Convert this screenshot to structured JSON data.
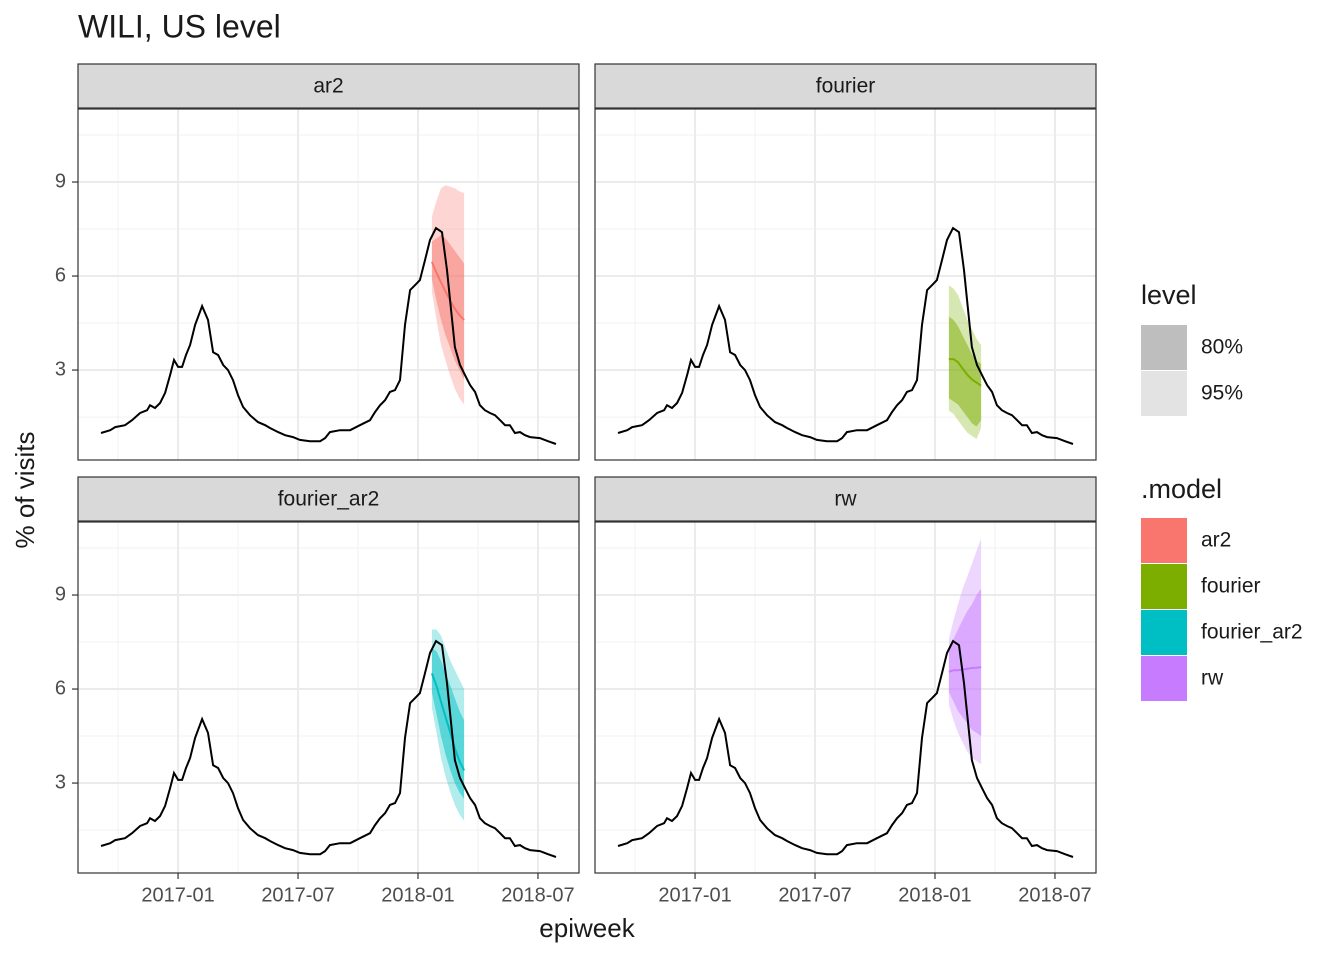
{
  "chart_data": {
    "type": "line",
    "title": "WILI, US level",
    "x_label": "epiweek",
    "y_label": "% of visits",
    "xlim": [
      2016.583,
      2018.671
    ],
    "ylim": [
      0.13,
      11.33
    ],
    "xticks": [
      {
        "value": 2017.0,
        "label": "2017-01"
      },
      {
        "value": 2017.5,
        "label": "2017-07"
      },
      {
        "value": 2018.0,
        "label": "2018-01"
      },
      {
        "value": 2018.5,
        "label": "2018-07"
      }
    ],
    "yticks": [
      3,
      6,
      9
    ],
    "grid": true,
    "x": [
      2016.679,
      2016.717,
      2016.738,
      2016.779,
      2016.808,
      2016.842,
      2016.871,
      2016.883,
      2016.904,
      2016.925,
      2016.946,
      2016.967,
      2016.983,
      2017.0,
      2017.017,
      2017.033,
      2017.05,
      2017.071,
      2017.1,
      2017.125,
      2017.146,
      2017.167,
      2017.188,
      2017.208,
      2017.229,
      2017.25,
      2017.271,
      2017.3,
      2017.333,
      2017.363,
      2017.383,
      2017.417,
      2017.446,
      2017.479,
      2017.508,
      2017.55,
      2017.592,
      2017.613,
      2017.633,
      2017.675,
      2017.717,
      2017.758,
      2017.8,
      2017.821,
      2017.842,
      2017.863,
      2017.883,
      2017.904,
      2017.925,
      2017.946,
      2017.967,
      2017.988,
      2018.008,
      2018.029,
      2018.05,
      2018.075,
      2018.1,
      2018.121,
      2018.138,
      2018.154,
      2018.175,
      2018.196,
      2018.217,
      2018.238,
      2018.258,
      2018.279,
      2018.3,
      2018.321,
      2018.342,
      2018.363,
      2018.383,
      2018.404,
      2018.425,
      2018.446,
      2018.467,
      2018.508,
      2018.542,
      2018.575
    ],
    "observed": {
      "color": "#000000",
      "values": [
        0.99,
        1.08,
        1.18,
        1.24,
        1.4,
        1.63,
        1.72,
        1.88,
        1.79,
        1.95,
        2.27,
        2.84,
        3.32,
        3.1,
        3.1,
        3.48,
        3.8,
        4.44,
        5.04,
        4.6,
        3.57,
        3.48,
        3.16,
        3.0,
        2.68,
        2.2,
        1.82,
        1.56,
        1.34,
        1.24,
        1.15,
        1.02,
        0.92,
        0.86,
        0.77,
        0.73,
        0.73,
        0.83,
        1.02,
        1.08,
        1.08,
        1.24,
        1.4,
        1.66,
        1.88,
        2.04,
        2.3,
        2.36,
        2.68,
        4.44,
        5.55,
        5.71,
        5.87,
        6.51,
        7.15,
        7.53,
        7.4,
        6.19,
        4.91,
        3.73,
        3.16,
        2.84,
        2.52,
        2.3,
        1.88,
        1.72,
        1.63,
        1.56,
        1.4,
        1.24,
        1.24,
        0.99,
        1.02,
        0.92,
        0.86,
        0.83,
        0.73,
        0.64
      ]
    },
    "forecast_x": [
      2018.058,
      2018.077,
      2018.096,
      2018.115,
      2018.135,
      2018.154,
      2018.173,
      2018.192
    ],
    "facets": [
      {
        "label": "ar2",
        "color": "#F8766D",
        "mean": [
          6.45,
          6.1,
          5.8,
          5.5,
          5.2,
          4.95,
          4.75,
          4.6
        ],
        "lo80": [
          5.9,
          5.2,
          4.6,
          4.1,
          3.7,
          3.3,
          3.0,
          2.7
        ],
        "hi80": [
          7.1,
          7.2,
          7.3,
          7.2,
          7.0,
          6.8,
          6.6,
          6.4
        ],
        "lo95": [
          5.5,
          4.6,
          3.8,
          3.3,
          2.8,
          2.4,
          2.1,
          1.9
        ],
        "hi95": [
          7.9,
          8.4,
          8.8,
          8.9,
          8.85,
          8.8,
          8.7,
          8.65
        ]
      },
      {
        "label": "fourier",
        "color": "#7CAE00",
        "mean": [
          3.35,
          3.35,
          3.25,
          3.05,
          2.85,
          2.7,
          2.6,
          2.5
        ],
        "lo80": [
          2.1,
          2.0,
          1.9,
          1.7,
          1.5,
          1.3,
          1.2,
          1.4
        ],
        "hi80": [
          4.7,
          4.6,
          4.4,
          4.1,
          3.8,
          3.5,
          3.3,
          3.2
        ],
        "lo95": [
          1.7,
          1.6,
          1.4,
          1.2,
          1.0,
          0.9,
          0.8,
          1.15
        ],
        "hi95": [
          5.7,
          5.6,
          5.4,
          5.0,
          4.6,
          4.3,
          4.0,
          3.8
        ]
      },
      {
        "label": "fourier_ar2",
        "color": "#00BFC4",
        "mean": [
          6.5,
          6.1,
          5.6,
          5.1,
          4.6,
          4.1,
          3.7,
          3.4
        ],
        "lo80": [
          5.9,
          5.2,
          4.5,
          3.9,
          3.4,
          3.0,
          2.7,
          2.5
        ],
        "hi80": [
          7.3,
          7.2,
          6.9,
          6.5,
          6.1,
          5.7,
          5.3,
          5.0
        ],
        "lo95": [
          5.4,
          4.6,
          3.8,
          3.2,
          2.7,
          2.3,
          2.0,
          1.8
        ],
        "hi95": [
          7.9,
          7.9,
          7.7,
          7.3,
          6.9,
          6.6,
          6.3,
          6.0
        ]
      },
      {
        "label": "rw",
        "color": "#C77CFF",
        "mean": [
          6.55,
          6.6,
          6.6,
          6.62,
          6.65,
          6.67,
          6.68,
          6.7
        ],
        "lo80": [
          5.9,
          5.6,
          5.3,
          5.1,
          4.9,
          4.7,
          4.6,
          4.5
        ],
        "hi80": [
          7.2,
          7.6,
          7.9,
          8.2,
          8.5,
          8.7,
          9.0,
          9.2
        ],
        "lo95": [
          5.5,
          5.0,
          4.6,
          4.3,
          4.0,
          3.8,
          3.7,
          3.6
        ],
        "hi95": [
          7.6,
          8.2,
          8.7,
          9.2,
          9.6,
          10.0,
          10.4,
          10.8
        ]
      }
    ],
    "legend": {
      "level": {
        "title": "level",
        "labels": [
          "80%",
          "95%"
        ],
        "colors": [
          "#bebebe",
          "#e3e3e3"
        ]
      },
      "model": {
        "title": ".model"
      }
    }
  }
}
